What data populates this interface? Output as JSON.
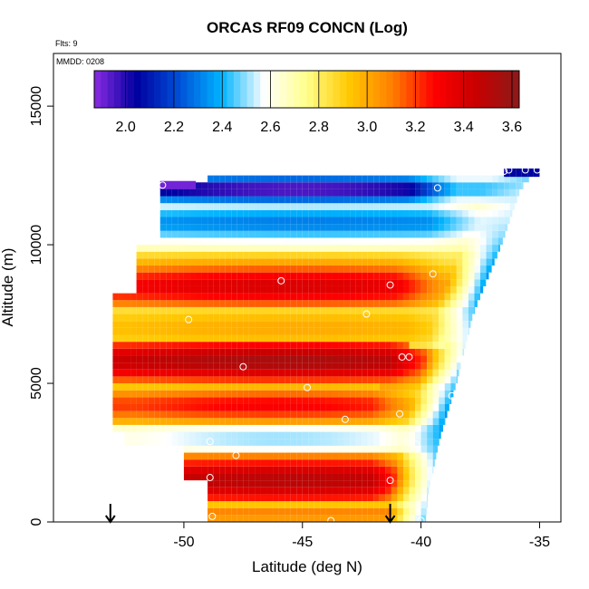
{
  "chart_data": {
    "type": "heatmap",
    "title": "ORCAS RF09 CONCN (Log)",
    "flights_label": "Flts: 9",
    "date_label": "MMDD: 0208",
    "xlabel": "Latitude (deg N)",
    "ylabel": "Altitude (m)",
    "xlim": [
      -55.5,
      -34.1
    ],
    "ylim": [
      0,
      16900
    ],
    "x_ticks": [
      -50,
      -45,
      -40,
      -35
    ],
    "y_ticks": [
      0,
      5000,
      10000,
      15000
    ],
    "colorbar": {
      "range": [
        1.87,
        3.63
      ],
      "ticks": [
        2.0,
        2.2,
        2.4,
        2.6,
        2.8,
        3.0,
        3.2,
        3.4,
        3.6
      ],
      "tick_labels": [
        "2.0",
        "2.2",
        "2.4",
        "2.6",
        "2.8",
        "3.0",
        "3.2",
        "3.4",
        "3.6"
      ],
      "colors": [
        "#8a2be2",
        "#0000a0",
        "#0050d8",
        "#00b4ff",
        "#ffffff",
        "#ffff8c",
        "#ffc800",
        "#ff8000",
        "#ff0000",
        "#c80000",
        "#8b1a1a"
      ]
    },
    "profile": {
      "top_alt": 12450,
      "top_left_alt": 12150,
      "coverage": [
        {
          "lat": -51.0,
          "top": 12200,
          "bottom": 10000
        },
        {
          "lat": -52.0,
          "top": 11200,
          "bottom": 8200
        },
        {
          "lat": -53.0,
          "top": 8500,
          "bottom": 3300
        },
        {
          "lat": -52.5,
          "top": 3300,
          "bottom": 2800
        },
        {
          "lat": -50.0,
          "top": 2800,
          "bottom": 1500
        },
        {
          "lat": -49.0,
          "top": 1500,
          "bottom": 0
        }
      ],
      "right_edge": [
        {
          "alt": 12750,
          "lat": -35.1
        },
        {
          "alt": 12000,
          "lat": -35.8
        },
        {
          "alt": 10000,
          "lat": -36.6
        },
        {
          "alt": 7500,
          "lat": -37.8
        },
        {
          "alt": 5000,
          "lat": -38.5
        },
        {
          "alt": 3000,
          "lat": -39.2
        },
        {
          "alt": 1000,
          "lat": -39.7
        },
        {
          "alt": 0,
          "lat": -39.8
        }
      ],
      "upper_right_block": {
        "lat_min": -36.5,
        "lat_max": -35.0,
        "alt_min": 12450,
        "alt_max": 12750
      },
      "bands": [
        {
          "alt": 12000,
          "width": 500,
          "value": 2.05,
          "lat_start": -52.0,
          "lat_end": -38.5,
          "peak": 1.9
        },
        {
          "alt": 10800,
          "width": 700,
          "value": 2.35,
          "lat_start": -52.0,
          "lat_end": -37.5,
          "peak": 2.3
        },
        {
          "alt": 8500,
          "width": 900,
          "value": 3.3,
          "lat_start": -52.5,
          "lat_end": -39.0,
          "peak": 3.4
        },
        {
          "alt": 7000,
          "width": 800,
          "value": 2.95,
          "lat_start": -52.5,
          "lat_end": -38.5,
          "peak": 3.0
        },
        {
          "alt": 5800,
          "width": 900,
          "value": 3.45,
          "lat_start": -52.5,
          "lat_end": -39.3,
          "peak": 3.55
        },
        {
          "alt": 4200,
          "width": 700,
          "value": 3.2,
          "lat_start": -52.0,
          "lat_end": -40.3,
          "peak": 3.3
        },
        {
          "alt": 3000,
          "width": 600,
          "value": 2.6,
          "lat_start": -52.0,
          "lat_end": -40.0,
          "peak": 2.5
        },
        {
          "alt": 1500,
          "width": 1000,
          "value": 3.45,
          "lat_start": -51.0,
          "lat_end": -40.5,
          "peak": 3.5
        },
        {
          "alt": 300,
          "width": 400,
          "value": 3.1,
          "lat_start": -49.0,
          "lat_end": -40.0,
          "peak": 3.1
        }
      ]
    },
    "sample_points": [
      {
        "lat": -50.9,
        "alt": 12150
      },
      {
        "lat": -39.3,
        "alt": 12050
      },
      {
        "lat": -36.5,
        "alt": 12650
      },
      {
        "lat": -36.3,
        "alt": 12700
      },
      {
        "lat": -35.6,
        "alt": 12700
      },
      {
        "lat": -35.1,
        "alt": 12700
      },
      {
        "lat": -45.9,
        "alt": 8700
      },
      {
        "lat": -41.3,
        "alt": 8550
      },
      {
        "lat": -39.5,
        "alt": 8950
      },
      {
        "lat": -49.8,
        "alt": 7300
      },
      {
        "lat": -42.3,
        "alt": 7500
      },
      {
        "lat": -47.5,
        "alt": 5600
      },
      {
        "lat": -40.8,
        "alt": 5950
      },
      {
        "lat": -40.5,
        "alt": 5950
      },
      {
        "lat": -44.8,
        "alt": 4850
      },
      {
        "lat": -38.7,
        "alt": 4550
      },
      {
        "lat": -43.2,
        "alt": 3700
      },
      {
        "lat": -40.9,
        "alt": 3900
      },
      {
        "lat": -48.9,
        "alt": 2900
      },
      {
        "lat": -47.8,
        "alt": 2400
      },
      {
        "lat": -40.2,
        "alt": 2800
      },
      {
        "lat": -48.9,
        "alt": 1600
      },
      {
        "lat": -41.3,
        "alt": 1500
      },
      {
        "lat": -48.8,
        "alt": 200
      },
      {
        "lat": -43.8,
        "alt": 50
      },
      {
        "lat": -40.0,
        "alt": 50
      }
    ],
    "arrows": [
      {
        "lat": -53.1
      },
      {
        "lat": -41.3
      }
    ]
  }
}
